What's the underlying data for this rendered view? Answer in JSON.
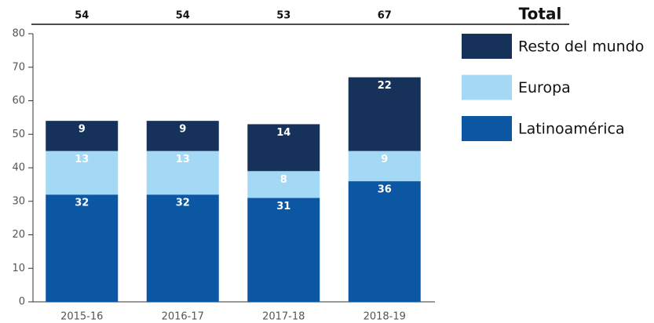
{
  "chart_data": {
    "type": "stacked_bar",
    "categories": [
      "2015-16",
      "2016-17",
      "2017-18",
      "2018-19"
    ],
    "series": [
      {
        "name": "Latinoamérica",
        "color": "#0b57a4",
        "values": [
          32,
          32,
          31,
          36
        ]
      },
      {
        "name": "Europa",
        "color": "#a3d9f5",
        "values": [
          13,
          13,
          8,
          9
        ]
      },
      {
        "name": "Resto del mundo",
        "color": "#17325a",
        "values": [
          9,
          9,
          14,
          22
        ]
      }
    ],
    "totals_label": "Total",
    "totals": [
      54,
      54,
      53,
      67
    ],
    "ylim": [
      0,
      80
    ],
    "yticks": [
      0,
      10,
      20,
      30,
      40,
      50,
      60,
      70,
      80
    ],
    "legend": "right"
  }
}
